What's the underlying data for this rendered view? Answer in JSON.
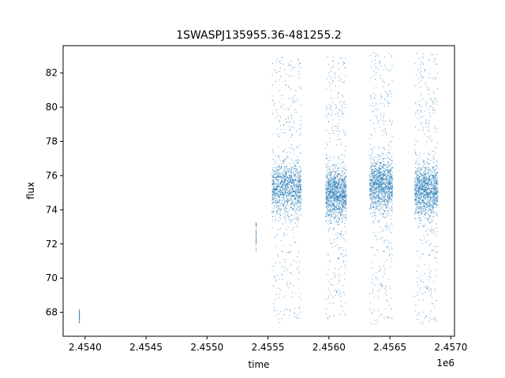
{
  "chart_data": {
    "type": "scatter",
    "title": "1SWASPJ135955.36-481255.2",
    "xlabel": "time",
    "ylabel": "flux",
    "x_offset_label": "1e6",
    "xlim": [
      2.45382,
      2.45703
    ],
    "ylim": [
      66.6,
      83.6
    ],
    "x_ticks": [
      2.454,
      2.4545,
      2.455,
      2.4555,
      2.456,
      2.4565,
      2.457
    ],
    "x_tick_labels": [
      "2.4540",
      "2.4545",
      "2.4550",
      "2.4555",
      "2.4560",
      "2.4565",
      "2.4570"
    ],
    "y_ticks": [
      68,
      70,
      72,
      74,
      76,
      78,
      80,
      82
    ],
    "y_tick_labels": [
      "68",
      "70",
      "72",
      "74",
      "76",
      "78",
      "80",
      "82"
    ],
    "grid": false,
    "marker_color": "#1f77b4",
    "clusters": [
      {
        "x_start": 2.45395,
        "x_end": 2.45395,
        "y_center": 67.8,
        "y_min": 67.4,
        "y_max": 68.2
      },
      {
        "x_start": 2.4554,
        "x_end": 2.4554,
        "y_center": 72.6,
        "y_min": 71.5,
        "y_max": 73.3
      },
      {
        "x_start": 2.45553,
        "x_end": 2.45577,
        "y_center": 75.3,
        "y_min": 67.4,
        "y_max": 83.0
      },
      {
        "x_start": 2.45597,
        "x_end": 2.45614,
        "y_center": 75.0,
        "y_min": 67.6,
        "y_max": 83.0
      },
      {
        "x_start": 2.45633,
        "x_end": 2.45652,
        "y_center": 75.5,
        "y_min": 67.3,
        "y_max": 83.2
      },
      {
        "x_start": 2.4567,
        "x_end": 2.45689,
        "y_center": 75.2,
        "y_min": 67.3,
        "y_max": 83.2
      }
    ]
  }
}
